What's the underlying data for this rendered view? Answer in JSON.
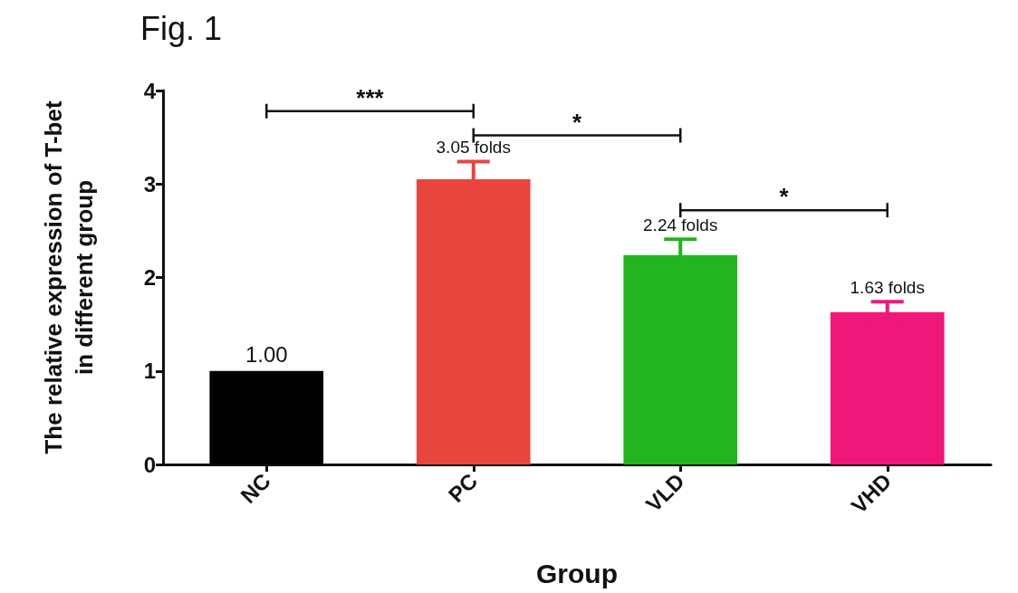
{
  "chart_data": {
    "type": "bar",
    "title": "Fig. 1",
    "xlabel": "Group",
    "ylabel": "The relative expression of T-bet\nin different group",
    "categories": [
      "NC",
      "PC",
      "VLD",
      "VHD"
    ],
    "values": [
      1.0,
      3.05,
      2.24,
      1.63
    ],
    "errors": [
      null,
      0.19,
      0.17,
      0.11
    ],
    "colors": [
      "#000000",
      "#e8453c",
      "#22b51f",
      "#f0177a"
    ],
    "value_labels": [
      "1.00",
      "3.05 folds",
      "2.24 folds",
      "1.63 folds"
    ],
    "annotations": [
      "***",
      "*",
      "*"
    ],
    "ylim": [
      0,
      4
    ],
    "yticks": [
      0,
      1,
      2,
      3,
      4
    ],
    "grid": false
  }
}
